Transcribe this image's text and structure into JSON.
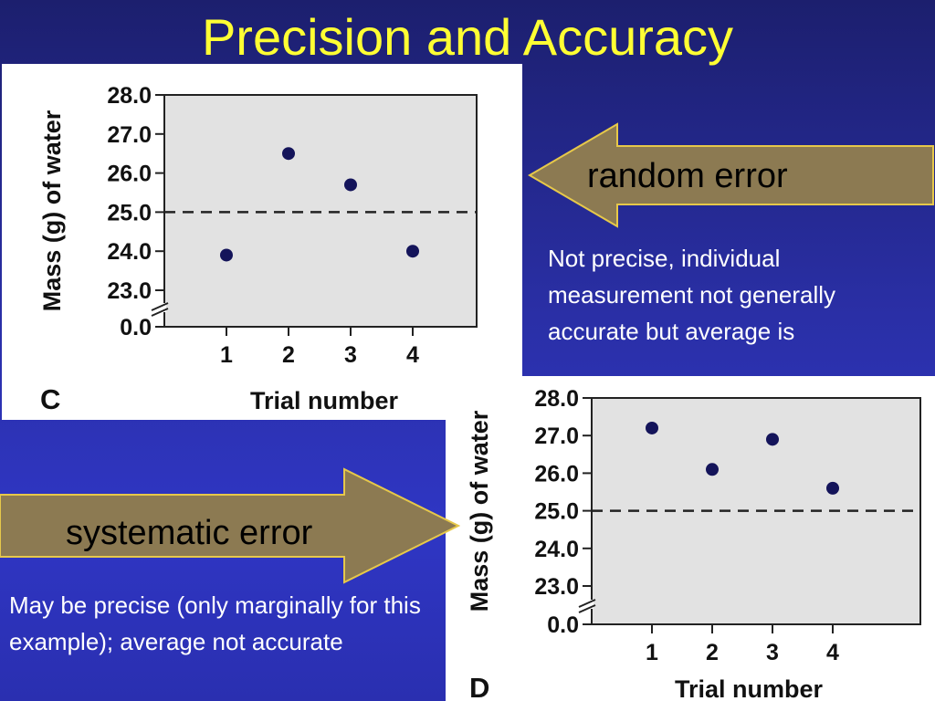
{
  "slide": {
    "title": "Precision and Accuracy",
    "random_error": {
      "label": "random error",
      "note": "Not precise, individual measurement not generally accurate but average is"
    },
    "systematic_error": {
      "label": "systematic error",
      "note": "May be precise (only marginally for this example); average not accurate"
    },
    "colors": {
      "title": "#ffff33",
      "arrow_fill": "#8c7a52",
      "arrow_stroke": "#e6c84a",
      "plot_bg": "#e2e2e2",
      "marker": "#14145a"
    }
  },
  "chart_data": [
    {
      "panel": "C",
      "type": "scatter",
      "xlabel": "Trial number",
      "ylabel": "Mass (g) of water",
      "x": [
        1,
        2,
        3,
        4
      ],
      "y": [
        23.9,
        26.5,
        25.7,
        24.0
      ],
      "y_ticks": [
        "28.0",
        "27.0",
        "26.0",
        "25.0",
        "24.0",
        "23.0",
        "0.0"
      ],
      "x_ticks": [
        "1",
        "2",
        "3",
        "4"
      ],
      "axis_break": true,
      "reference_line_y": 25.0,
      "ylim": [
        23.0,
        28.0
      ],
      "grid": false
    },
    {
      "panel": "D",
      "type": "scatter",
      "xlabel": "Trial number",
      "ylabel": "Mass (g) of water",
      "x": [
        1,
        2,
        3,
        4
      ],
      "y": [
        27.2,
        26.1,
        26.9,
        25.6
      ],
      "y_ticks": [
        "28.0",
        "27.0",
        "26.0",
        "25.0",
        "24.0",
        "23.0",
        "0.0"
      ],
      "x_ticks": [
        "1",
        "2",
        "3",
        "4"
      ],
      "axis_break": true,
      "reference_line_y": 25.0,
      "ylim": [
        23.0,
        28.0
      ],
      "grid": false
    }
  ]
}
